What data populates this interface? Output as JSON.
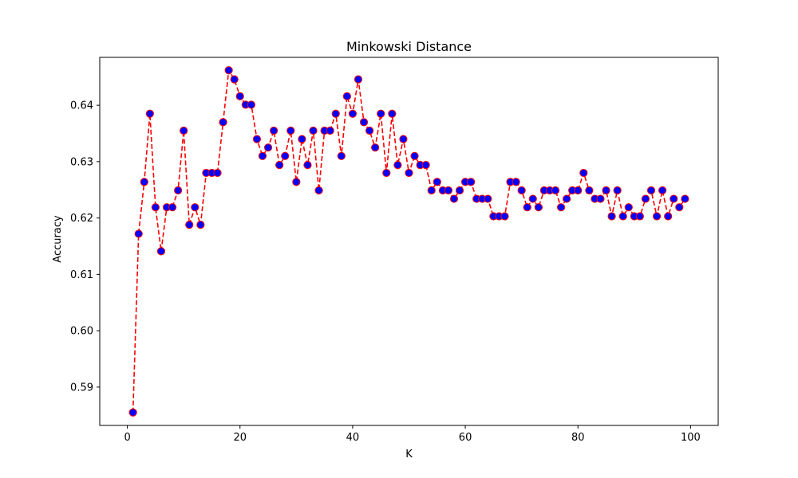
{
  "chart_data": {
    "type": "line",
    "title": "Minkowski Distance",
    "xlabel": "K",
    "ylabel": "Accuracy",
    "xlim": [
      -4.9,
      104.9
    ],
    "ylim": [
      0.5832,
      0.6485
    ],
    "xticks": [
      0,
      20,
      40,
      60,
      80,
      100
    ],
    "xtick_labels": [
      "0",
      "20",
      "40",
      "60",
      "80",
      "100"
    ],
    "yticks": [
      0.59,
      0.6,
      0.61,
      0.62,
      0.63,
      0.64
    ],
    "ytick_labels": [
      "0.59",
      "0.60",
      "0.61",
      "0.62",
      "0.63",
      "0.64"
    ],
    "grid": false,
    "line_color": "#ff0000",
    "line_style": "dashed",
    "marker_face_color": "#0000ff",
    "marker_edge_color": "#ff0000",
    "x": [
      1,
      2,
      3,
      4,
      5,
      6,
      7,
      8,
      9,
      10,
      11,
      12,
      13,
      14,
      15,
      16,
      17,
      18,
      19,
      20,
      21,
      22,
      23,
      24,
      25,
      26,
      27,
      28,
      29,
      30,
      31,
      32,
      33,
      34,
      35,
      36,
      37,
      38,
      39,
      40,
      41,
      42,
      43,
      44,
      45,
      46,
      47,
      48,
      49,
      50,
      51,
      52,
      53,
      54,
      55,
      56,
      57,
      58,
      59,
      60,
      61,
      62,
      63,
      64,
      65,
      66,
      67,
      68,
      69,
      70,
      71,
      72,
      73,
      74,
      75,
      76,
      77,
      78,
      79,
      80,
      81,
      82,
      83,
      84,
      85,
      86,
      87,
      88,
      89,
      90,
      91,
      92,
      93,
      94,
      95,
      96,
      97,
      98,
      99
    ],
    "y": [
      0.5855,
      0.6172,
      0.6264,
      0.6385,
      0.6219,
      0.6141,
      0.6219,
      0.6219,
      0.6249,
      0.6355,
      0.6188,
      0.6219,
      0.6188,
      0.628,
      0.628,
      0.628,
      0.637,
      0.6462,
      0.6446,
      0.6416,
      0.6401,
      0.6401,
      0.634,
      0.631,
      0.6325,
      0.6355,
      0.6294,
      0.631,
      0.6355,
      0.6264,
      0.634,
      0.6294,
      0.6355,
      0.6249,
      0.6355,
      0.6355,
      0.6385,
      0.631,
      0.6416,
      0.6385,
      0.6446,
      0.637,
      0.6355,
      0.6325,
      0.6385,
      0.628,
      0.6385,
      0.6294,
      0.634,
      0.628,
      0.631,
      0.6294,
      0.6294,
      0.6249,
      0.6264,
      0.6249,
      0.6249,
      0.6234,
      0.6249,
      0.6264,
      0.6264,
      0.6234,
      0.6234,
      0.6234,
      0.6203,
      0.6203,
      0.6203,
      0.6264,
      0.6264,
      0.6249,
      0.6219,
      0.6234,
      0.6219,
      0.6249,
      0.6249,
      0.6249,
      0.6219,
      0.6234,
      0.6249,
      0.6249,
      0.628,
      0.6249,
      0.6234,
      0.6234,
      0.6249,
      0.6203,
      0.6249,
      0.6203,
      0.6219,
      0.6203,
      0.6203,
      0.6234,
      0.6249,
      0.6203,
      0.6249,
      0.6203,
      0.6234,
      0.6219,
      0.6234
    ]
  }
}
